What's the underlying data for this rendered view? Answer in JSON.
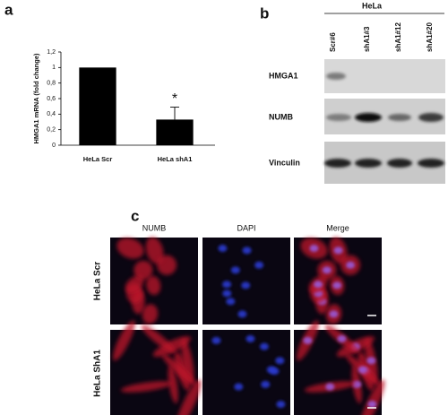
{
  "chart_data": {
    "type": "bar",
    "ylabel": "HMGA1 mRNA (fold change)",
    "categories": [
      "HeLa Scr",
      "HeLa shA1"
    ],
    "values": [
      1,
      0.33
    ],
    "errors": [
      null,
      0.16
    ],
    "annotation": "*",
    "color": "#000000",
    "ylim": [
      0,
      1.2
    ],
    "yticks": [
      0,
      {
        "value": 0.2,
        "label": "0,2"
      },
      {
        "value": 0.4,
        "label": "0,4"
      },
      {
        "value": 0.6,
        "label": "0,6"
      },
      {
        "value": 0.8,
        "label": "0,8"
      },
      1,
      {
        "value": 1.2,
        "label": "1,2"
      }
    ]
  },
  "panels": {
    "a": "a",
    "b": "b",
    "c": "c"
  },
  "blot": {
    "header": "HeLa",
    "lanes": [
      "Scr#6",
      "shA1#3",
      "shA1#12",
      "shA1#20"
    ],
    "rows": [
      "HMGA1",
      "NUMB",
      "Vinculin"
    ]
  },
  "microscopy": {
    "columns": [
      "NUMB",
      "DAPI",
      "Merge"
    ],
    "rows": [
      "HeLa Scr",
      "HeLa ShA1"
    ]
  }
}
